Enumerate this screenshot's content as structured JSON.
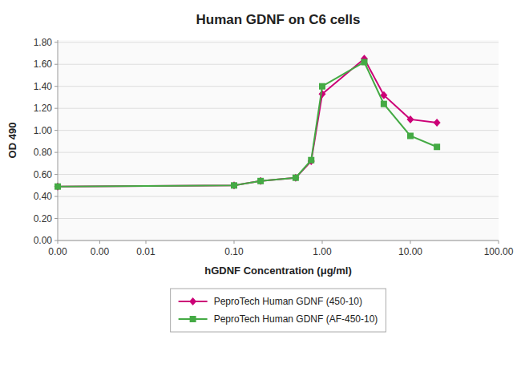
{
  "chart_data": {
    "type": "line",
    "title": "Human GDNF on C6 cells",
    "x_label": "hGDNF Concentration (μg/ml)",
    "y_label": "OD 490",
    "x": [
      0.001,
      0.1,
      0.2,
      0.5,
      0.75,
      1.0,
      3.0,
      5.0,
      10.0,
      20.0
    ],
    "series": [
      {
        "name": "PeproTech Human GDNF (450-10)",
        "color": "#cc0077",
        "marker": "diamond",
        "values": [
          0.49,
          0.5,
          0.54,
          0.57,
          0.72,
          1.33,
          1.65,
          1.32,
          1.1,
          1.07
        ]
      },
      {
        "name": "PeproTech Human GDNF (AF-450-10)",
        "color": "#44aa44",
        "marker": "square",
        "values": [
          0.49,
          0.5,
          0.54,
          0.57,
          0.73,
          1.4,
          1.62,
          1.24,
          0.95,
          0.85
        ]
      }
    ],
    "log": "x",
    "xlim": [
      0.001,
      100.0
    ],
    "xticks": [
      {
        "value": 0.001,
        "label": "0.00"
      },
      {
        "value": 0.003,
        "label": "0.00"
      },
      {
        "value": 0.01,
        "label": "0.01"
      },
      {
        "value": 0.1,
        "label": "0.10"
      },
      {
        "value": 1.0,
        "label": "1.00"
      },
      {
        "value": 10.0,
        "label": "10.00"
      },
      {
        "value": 100.0,
        "label": "100.00"
      }
    ],
    "ylim": [
      0.0,
      1.82
    ],
    "yticks": [
      {
        "value": 0.0,
        "label": "0.00"
      },
      {
        "value": 0.2,
        "label": "0.20"
      },
      {
        "value": 0.4,
        "label": "0.40"
      },
      {
        "value": 0.6,
        "label": "0.60"
      },
      {
        "value": 0.8,
        "label": "0.80"
      },
      {
        "value": 1.0,
        "label": "1.00"
      },
      {
        "value": 1.2,
        "label": "1.20"
      },
      {
        "value": 1.4,
        "label": "1.40"
      },
      {
        "value": 1.6,
        "label": "1.60"
      },
      {
        "value": 1.8,
        "label": "1.80"
      }
    ],
    "grid": "y",
    "legend": "bottom"
  }
}
